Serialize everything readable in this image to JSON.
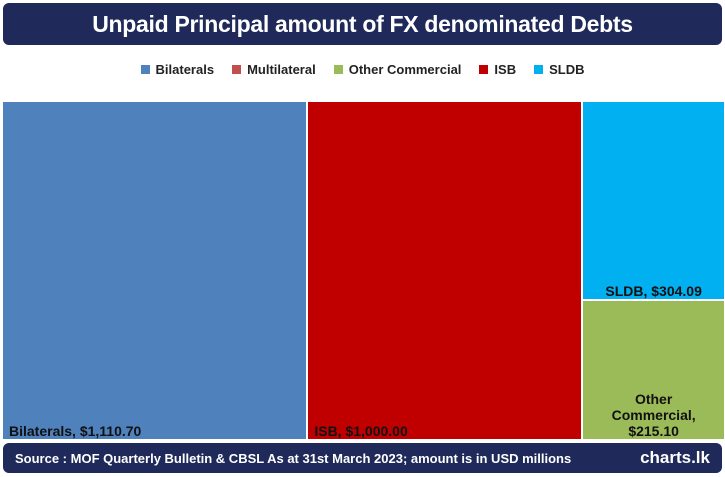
{
  "chart_data": {
    "type": "treemap",
    "title": "Unpaid Principal amount of FX denominated Debts",
    "categories": [
      "Bilaterals",
      "Multilateral",
      "Other Commercial",
      "ISB",
      "SLDB"
    ],
    "values": [
      1110.7,
      null,
      215.1,
      1000.0,
      304.09
    ],
    "value_labels": [
      "Bilaterals, $1,110.70",
      null,
      "Other Commercial, $215.10",
      "ISB, $1,000.00",
      "SLDB, $304.09"
    ],
    "colors": [
      "#4f81bd",
      "#c0504d",
      "#9bbb59",
      "#c00000",
      "#00b0f0"
    ],
    "legend": "top",
    "source": "Source : MOF Quarterly Bulletin & CBSL As at 31st March 2023; amount is in USD millions",
    "logo": "charts.lk"
  }
}
